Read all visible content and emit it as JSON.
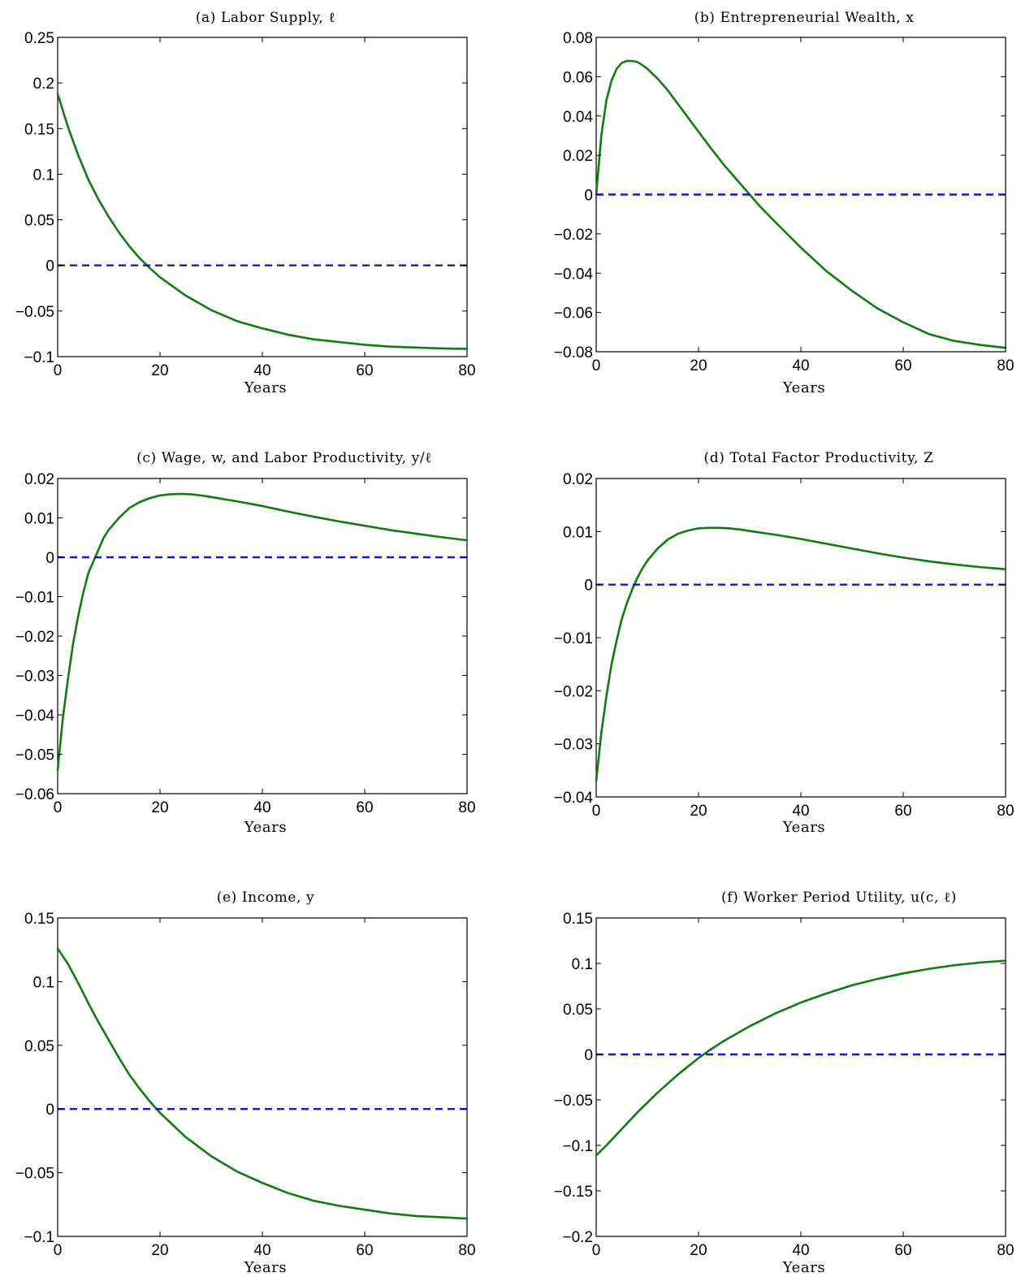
{
  "colors": {
    "response": "#117a11",
    "zero_line": "#1515e0",
    "axes": "#000000"
  },
  "chart_data": [
    {
      "id": "a",
      "type": "line",
      "title": "(a) Labor Supply, ℓ",
      "xlabel": "Years",
      "ylabel": "",
      "xlim": [
        0,
        80
      ],
      "ylim": [
        -0.1,
        0.25
      ],
      "xticks": [
        0,
        20,
        40,
        60,
        80
      ],
      "yticks": [
        -0.1,
        -0.05,
        0,
        0.05,
        0.1,
        0.15,
        0.2,
        0.25
      ],
      "ytick_labels": [
        "−0.1",
        "−0.05",
        "0",
        "0.05",
        "0.1",
        "0.15",
        "0.2",
        "0.25"
      ],
      "grid": false,
      "series": [
        {
          "style": "solid",
          "color": "#117a11",
          "x": [
            0,
            2,
            4,
            6,
            8,
            10,
            12,
            14,
            16,
            18,
            20,
            25,
            30,
            35,
            40,
            45,
            50,
            55,
            60,
            65,
            70,
            75,
            80
          ],
          "y": [
            0.188,
            0.152,
            0.121,
            0.094,
            0.072,
            0.053,
            0.036,
            0.021,
            0.008,
            -0.003,
            -0.013,
            -0.033,
            -0.049,
            -0.061,
            -0.069,
            -0.076,
            -0.081,
            -0.084,
            -0.087,
            -0.089,
            -0.09,
            -0.091,
            -0.0915
          ]
        },
        {
          "style": "dashed",
          "color": "#1515e0",
          "x": [
            0,
            80
          ],
          "y": [
            0,
            0
          ]
        }
      ]
    },
    {
      "id": "b",
      "type": "line",
      "title": "(b) Entrepreneurial Wealth, x",
      "xlabel": "Years",
      "ylabel": "",
      "xlim": [
        0,
        80
      ],
      "ylim": [
        -0.08,
        0.08
      ],
      "xticks": [
        0,
        20,
        40,
        60,
        80
      ],
      "yticks": [
        -0.08,
        -0.06,
        -0.04,
        -0.02,
        0,
        0.02,
        0.04,
        0.06,
        0.08
      ],
      "ytick_labels": [
        "−0.08",
        "−0.06",
        "−0.04",
        "−0.02",
        "0",
        "0.02",
        "0.04",
        "0.06",
        "0.08"
      ],
      "grid": false,
      "series": [
        {
          "style": "solid",
          "color": "#117a11",
          "x": [
            0,
            1,
            2,
            3,
            4,
            5,
            6,
            7,
            8,
            9,
            10,
            12,
            14,
            16,
            18,
            20,
            22,
            25,
            28,
            30,
            32,
            35,
            40,
            45,
            50,
            55,
            60,
            65,
            70,
            75,
            80
          ],
          "y": [
            0,
            0.03,
            0.048,
            0.058,
            0.064,
            0.067,
            0.068,
            0.068,
            0.0675,
            0.066,
            0.064,
            0.059,
            0.053,
            0.046,
            0.039,
            0.032,
            0.025,
            0.015,
            0.006,
            0,
            -0.006,
            -0.014,
            -0.027,
            -0.039,
            -0.049,
            -0.058,
            -0.065,
            -0.071,
            -0.0745,
            -0.0765,
            -0.078
          ]
        },
        {
          "style": "dashed",
          "color": "#1515e0",
          "x": [
            0,
            80
          ],
          "y": [
            0,
            0
          ]
        }
      ]
    },
    {
      "id": "c",
      "type": "line",
      "title": "(c) Wage, w, and Labor Productivity, y/ℓ",
      "xlabel": "Years",
      "ylabel": "",
      "xlim": [
        0,
        80
      ],
      "ylim": [
        -0.06,
        0.02
      ],
      "xticks": [
        0,
        20,
        40,
        60,
        80
      ],
      "yticks": [
        -0.06,
        -0.05,
        -0.04,
        -0.03,
        -0.02,
        -0.01,
        0,
        0.01,
        0.02
      ],
      "ytick_labels": [
        "−0.06",
        "−0.05",
        "−0.04",
        "−0.03",
        "−0.02",
        "−0.01",
        "0",
        "0.01",
        "0.02"
      ],
      "grid": false,
      "series": [
        {
          "style": "solid",
          "color": "#117a11",
          "x": [
            0,
            1,
            2,
            3,
            4,
            5,
            6,
            7,
            8,
            9,
            10,
            12,
            14,
            16,
            18,
            20,
            22,
            24,
            26,
            28,
            30,
            35,
            40,
            45,
            50,
            55,
            60,
            65,
            70,
            75,
            80
          ],
          "y": [
            -0.054,
            -0.041,
            -0.031,
            -0.022,
            -0.015,
            -0.009,
            -0.004,
            -0.001,
            0.002,
            0.005,
            0.007,
            0.01,
            0.0125,
            0.014,
            0.015,
            0.0157,
            0.016,
            0.0161,
            0.016,
            0.0157,
            0.0153,
            0.0142,
            0.013,
            0.0116,
            0.0103,
            0.0091,
            0.008,
            0.0069,
            0.006,
            0.0051,
            0.0043
          ]
        },
        {
          "style": "dashed",
          "color": "#1515e0",
          "x": [
            0,
            80
          ],
          "y": [
            0,
            0
          ]
        }
      ]
    },
    {
      "id": "d",
      "type": "line",
      "title": "(d) Total Factor Productivity, Z",
      "xlabel": "Years",
      "ylabel": "",
      "xlim": [
        0,
        80
      ],
      "ylim": [
        -0.04,
        0.02
      ],
      "xticks": [
        0,
        20,
        40,
        60,
        80
      ],
      "yticks": [
        -0.04,
        -0.03,
        -0.02,
        -0.01,
        0,
        0.01,
        0.02
      ],
      "ytick_labels": [
        "−0.04",
        "−0.03",
        "−0.02",
        "−0.01",
        "0",
        "0.01",
        "0.02"
      ],
      "grid": false,
      "series": [
        {
          "style": "solid",
          "color": "#117a11",
          "x": [
            0,
            1,
            2,
            3,
            4,
            5,
            6,
            7,
            8,
            9,
            10,
            12,
            14,
            16,
            18,
            20,
            22,
            24,
            26,
            28,
            30,
            35,
            40,
            45,
            50,
            55,
            60,
            65,
            70,
            75,
            80
          ],
          "y": [
            -0.037,
            -0.028,
            -0.021,
            -0.015,
            -0.0105,
            -0.0065,
            -0.0035,
            -0.001,
            0.0012,
            0.003,
            0.0045,
            0.0068,
            0.0085,
            0.0096,
            0.0102,
            0.0106,
            0.0107,
            0.0107,
            0.0106,
            0.0104,
            0.0101,
            0.0094,
            0.0086,
            0.0077,
            0.0068,
            0.0059,
            0.0051,
            0.0044,
            0.0038,
            0.0033,
            0.0029
          ]
        },
        {
          "style": "dashed",
          "color": "#1515e0",
          "x": [
            0,
            80
          ],
          "y": [
            0,
            0
          ]
        }
      ]
    },
    {
      "id": "e",
      "type": "line",
      "title": "(e) Income, y",
      "xlabel": "Years",
      "ylabel": "",
      "xlim": [
        0,
        80
      ],
      "ylim": [
        -0.1,
        0.15
      ],
      "xticks": [
        0,
        20,
        40,
        60,
        80
      ],
      "yticks": [
        -0.1,
        -0.05,
        0,
        0.05,
        0.1,
        0.15
      ],
      "ytick_labels": [
        "−0.1",
        "−0.05",
        "0",
        "0.05",
        "0.1",
        "0.15"
      ],
      "grid": false,
      "series": [
        {
          "style": "solid",
          "color": "#117a11",
          "x": [
            0,
            2,
            4,
            6,
            8,
            10,
            12,
            14,
            16,
            18,
            20,
            25,
            30,
            35,
            40,
            45,
            50,
            55,
            60,
            65,
            70,
            75,
            80
          ],
          "y": [
            0.126,
            0.114,
            0.099,
            0.083,
            0.068,
            0.054,
            0.04,
            0.027,
            0.016,
            0.006,
            -0.003,
            -0.022,
            -0.037,
            -0.049,
            -0.058,
            -0.066,
            -0.072,
            -0.076,
            -0.079,
            -0.082,
            -0.084,
            -0.085,
            -0.086
          ]
        },
        {
          "style": "dashed",
          "color": "#1515e0",
          "x": [
            0,
            80
          ],
          "y": [
            0,
            0
          ]
        }
      ]
    },
    {
      "id": "f",
      "type": "line",
      "title": "(f) Worker Period Utility, u(c, ℓ)",
      "xlabel": "Years",
      "ylabel": "",
      "xlim": [
        0,
        80
      ],
      "ylim": [
        -0.2,
        0.15
      ],
      "xticks": [
        0,
        20,
        40,
        60,
        80
      ],
      "yticks": [
        -0.2,
        -0.15,
        -0.1,
        -0.05,
        0,
        0.05,
        0.1,
        0.15
      ],
      "ytick_labels": [
        "−0.2",
        "−0.15",
        "−0.1",
        "−0.05",
        "0",
        "0.05",
        "0.1",
        "0.15"
      ],
      "grid": false,
      "series": [
        {
          "style": "solid",
          "color": "#117a11",
          "x": [
            0,
            2,
            4,
            6,
            8,
            10,
            12,
            14,
            16,
            18,
            20,
            22,
            25,
            30,
            35,
            40,
            45,
            50,
            55,
            60,
            65,
            70,
            75,
            80
          ],
          "y": [
            -0.111,
            -0.1,
            -0.088,
            -0.076,
            -0.064,
            -0.053,
            -0.042,
            -0.032,
            -0.022,
            -0.013,
            -0.004,
            0.004,
            0.015,
            0.031,
            0.045,
            0.057,
            0.067,
            0.076,
            0.083,
            0.089,
            0.094,
            0.098,
            0.101,
            0.103
          ]
        },
        {
          "style": "dashed",
          "color": "#1515e0",
          "x": [
            0,
            80
          ],
          "y": [
            0,
            0
          ]
        }
      ]
    }
  ]
}
